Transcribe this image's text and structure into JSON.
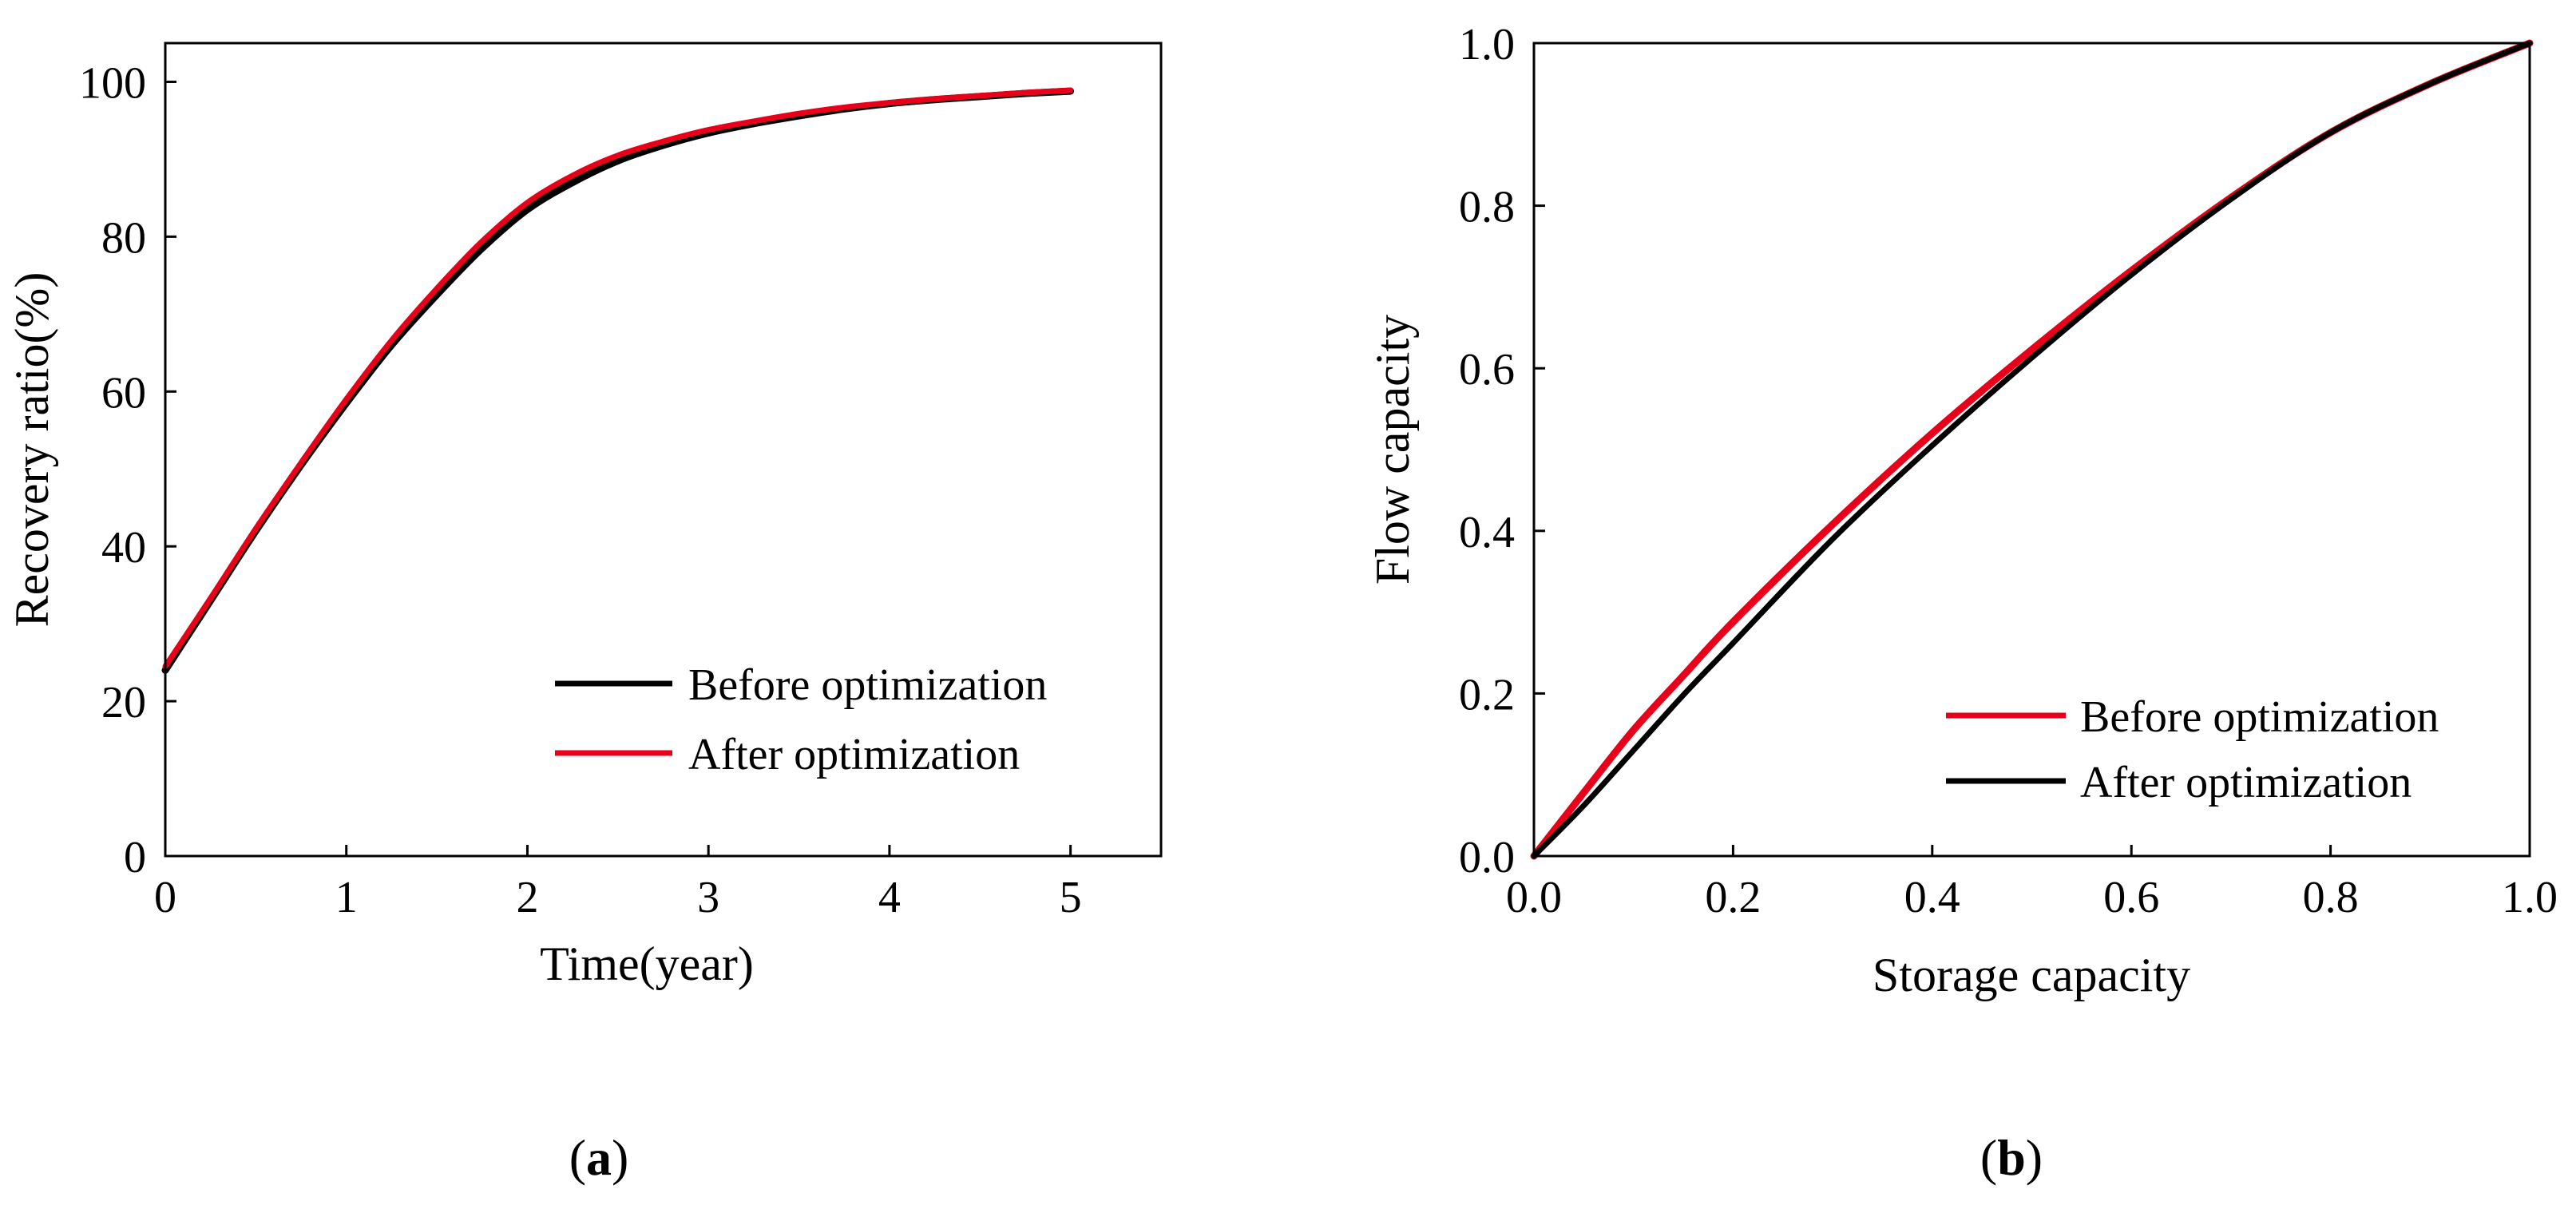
{
  "chart_data": [
    {
      "type": "line",
      "panel_label": "a",
      "title": "",
      "xlabel": "Time(year)",
      "ylabel": "Recovery ratio(%)",
      "xlim": [
        0,
        5.5
      ],
      "ylim": [
        0,
        105
      ],
      "xticks": [
        0,
        1,
        2,
        3,
        4,
        5
      ],
      "yticks": [
        0,
        20,
        40,
        60,
        80,
        100
      ],
      "legend_position": "lower-right",
      "series": [
        {
          "name": "Before optimization",
          "color": "#000000",
          "x": [
            0,
            0.25,
            0.5,
            0.75,
            1.0,
            1.25,
            1.5,
            1.75,
            2.0,
            2.25,
            2.5,
            2.75,
            3.0,
            3.25,
            3.5,
            3.75,
            4.0,
            4.25,
            4.5,
            4.75,
            5.0
          ],
          "y": [
            24,
            33,
            42,
            50.5,
            58.5,
            66,
            72.5,
            78.5,
            83.5,
            87,
            89.8,
            91.8,
            93.4,
            94.6,
            95.6,
            96.5,
            97.2,
            97.7,
            98.1,
            98.5,
            98.8
          ]
        },
        {
          "name": "After optimization",
          "color": "#e8001b",
          "x": [
            0,
            0.25,
            0.5,
            0.75,
            1.0,
            1.25,
            1.5,
            1.75,
            2.0,
            2.25,
            2.5,
            2.75,
            3.0,
            3.25,
            3.5,
            3.75,
            4.0,
            4.25,
            4.5,
            4.75,
            5.0
          ],
          "y": [
            24.5,
            33.3,
            42.3,
            50.8,
            59,
            66.6,
            73.3,
            79.4,
            84.4,
            87.9,
            90.5,
            92.3,
            93.8,
            94.9,
            95.9,
            96.7,
            97.3,
            97.8,
            98.2,
            98.6,
            98.9
          ]
        }
      ]
    },
    {
      "type": "line",
      "panel_label": "b",
      "title": "",
      "xlabel": "Storage capacity",
      "ylabel": "Flow capacity",
      "xlim": [
        0,
        1
      ],
      "ylim": [
        0,
        1
      ],
      "xticks": [
        "0.0",
        "0.2",
        "0.4",
        "0.6",
        "0.8",
        "1.0"
      ],
      "yticks": [
        "0.0",
        "0.2",
        "0.4",
        "0.6",
        "0.8",
        "1.0"
      ],
      "legend_position": "lower-right",
      "series": [
        {
          "name": "Before optimization",
          "color": "#e8001b",
          "x": [
            0,
            0.05,
            0.1,
            0.15,
            0.2,
            0.3,
            0.4,
            0.5,
            0.6,
            0.7,
            0.8,
            0.9,
            1.0
          ],
          "y": [
            0,
            0.078,
            0.155,
            0.222,
            0.288,
            0.408,
            0.52,
            0.623,
            0.72,
            0.81,
            0.89,
            0.95,
            1.0
          ]
        },
        {
          "name": "After optimization",
          "color": "#000000",
          "x": [
            0,
            0.05,
            0.1,
            0.15,
            0.2,
            0.3,
            0.4,
            0.5,
            0.6,
            0.7,
            0.8,
            0.9,
            1.0
          ],
          "y": [
            0,
            0.062,
            0.13,
            0.198,
            0.262,
            0.39,
            0.505,
            0.613,
            0.715,
            0.808,
            0.89,
            0.95,
            1.0
          ]
        }
      ]
    }
  ]
}
